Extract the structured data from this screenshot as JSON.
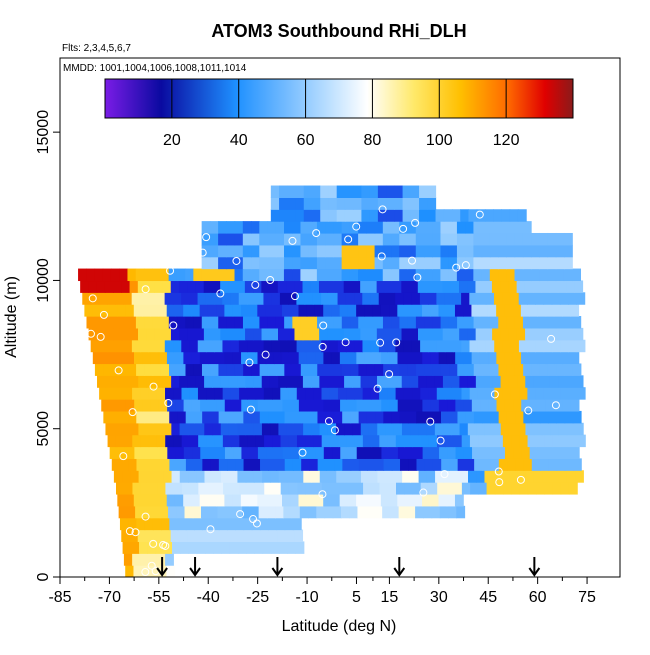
{
  "chart_data": {
    "type": "heatmap",
    "title": "ATOM3 Southbound RHi_DLH",
    "annotations": [
      "Flts: 2,3,4,5,6,7",
      "MMDD: 1001,1004,1006,1008,1011,1014"
    ],
    "xlabel": "Latitude (deg N)",
    "ylabel": "Altitude (m)",
    "xlim": [
      -85,
      85
    ],
    "ylim": [
      0,
      17500
    ],
    "x_ticks": [
      -85,
      -70,
      -55,
      -40,
      -25,
      -10,
      5,
      15,
      30,
      45,
      60,
      75
    ],
    "y_ticks": [
      0,
      5000,
      10000,
      15000
    ],
    "colorbar": {
      "range": [
        0,
        140
      ],
      "ticks": [
        20,
        40,
        60,
        80,
        100,
        120
      ],
      "colors": [
        "#7a1ce6",
        "#0a0aa0",
        "#1e90ff",
        "#ffffff",
        "#ffd400",
        "#ff7a00",
        "#8b1a1a"
      ]
    },
    "arrows_x": [
      -54,
      -44,
      -19,
      18,
      59
    ],
    "grid": false
  }
}
